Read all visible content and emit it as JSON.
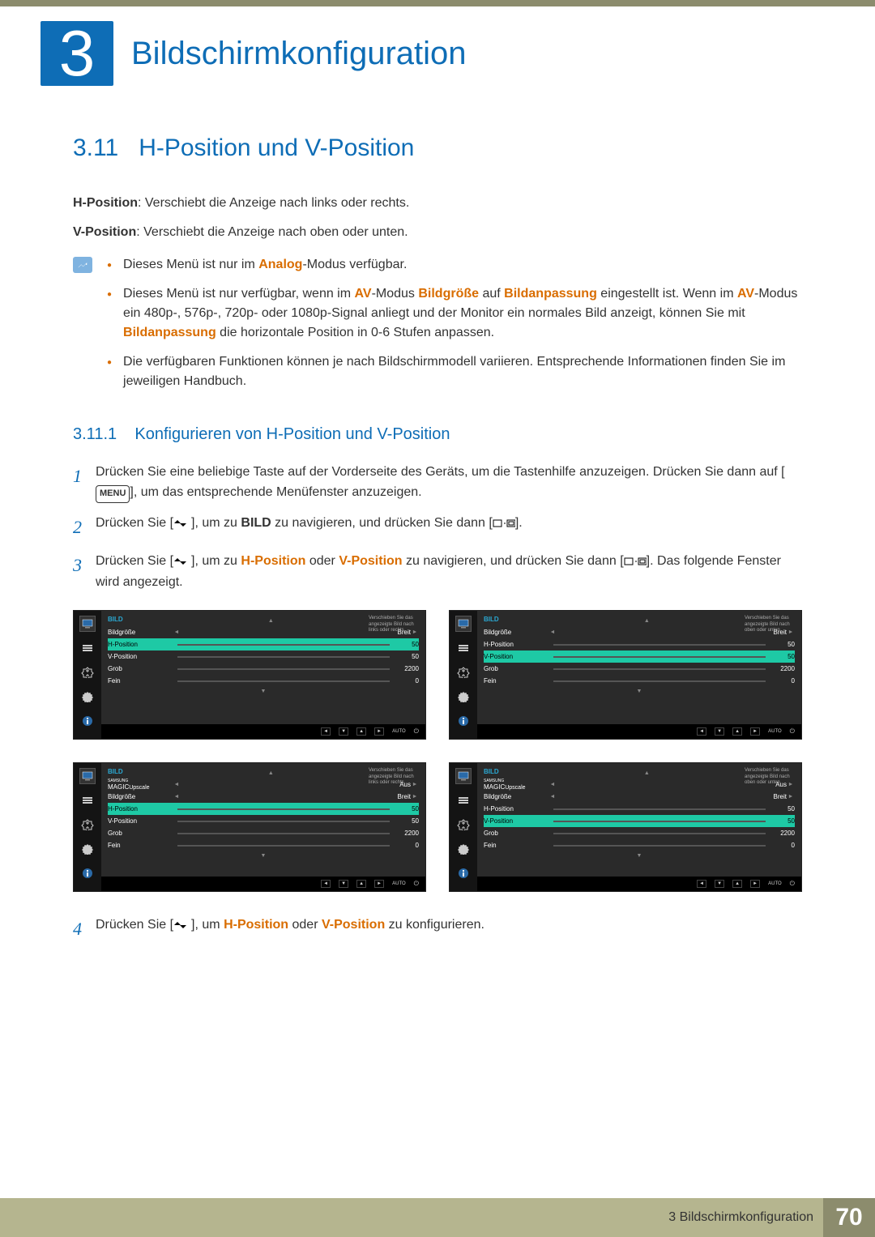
{
  "chapter": {
    "number": "3",
    "title": "Bildschirmkonfiguration"
  },
  "section": {
    "number": "3.11",
    "title": "H-Position und V-Position"
  },
  "intro": {
    "hpos_label": "H-Position",
    "hpos_text": ": Verschiebt die Anzeige nach links oder rechts.",
    "vpos_label": "V-Position",
    "vpos_text": ": Verschiebt die Anzeige nach oben oder unten."
  },
  "bullets": {
    "b1_pre": "Dieses Menü ist nur im ",
    "b1_kw": "Analog",
    "b1_suf": "-Modus verfügbar.",
    "b2_p1": "Dieses Menü ist nur verfügbar, wenn im ",
    "b2_av": "AV",
    "b2_p2": "-Modus ",
    "b2_bg": "Bildgröße",
    "b2_p3": " auf ",
    "b2_ba": "Bildanpassung",
    "b2_p4": " eingestellt ist. Wenn im ",
    "b2_p5": "-Modus ein 480p-, 576p-, 720p- oder 1080p-Signal anliegt und der Monitor ein normales Bild anzeigt, können Sie mit ",
    "b2_p6": " die horizontale Position in 0-6 Stufen anpassen.",
    "b3": "Die verfügbaren Funktionen können je nach Bildschirmmodell variieren. Entsprechende Informationen finden Sie im jeweiligen Handbuch."
  },
  "subsection": {
    "number": "3.11.1",
    "title": "Konfigurieren von H-Position und V-Position"
  },
  "steps": {
    "s1_a": "Drücken Sie eine beliebige Taste auf der Vorderseite des Geräts, um die Tastenhilfe anzuzeigen. Drücken Sie dann auf [",
    "s1_menu": "MENU",
    "s1_b": "], um das entsprechende Menüfenster anzuzeigen.",
    "s2_a": "Drücken Sie [",
    "s2_b": "], um zu ",
    "s2_bild": "BILD",
    "s2_c": " zu navigieren, und drücken Sie dann [",
    "s2_d": "].",
    "s3_a": "Drücken Sie [",
    "s3_b": "], um zu ",
    "s3_h": "H-Position",
    "s3_or": " oder ",
    "s3_v": "V-Position",
    "s3_c": " zu navigieren, und drücken Sie dann [",
    "s3_d": "]. Das folgende Fenster wird angezeigt.",
    "s4_a": "Drücken Sie [",
    "s4_b": "], um ",
    "s4_c": " zu konfigurieren."
  },
  "osd": {
    "title": "BILD",
    "help_lr": "Verschieben Sie das angezeigte Bild nach links oder rechts.",
    "help_ud": "Verschieben Sie das angezeigte Bild nach oben oder unten.",
    "auto": "AUTO",
    "magic": "MAGIC",
    "upscale": "Upscale",
    "samsung": "SAMSUNG",
    "panelA": {
      "highlight": 1,
      "rows": [
        {
          "label": "Bildgröße",
          "val": "Breit",
          "bar": null
        },
        {
          "label": "H-Position",
          "val": "50",
          "bar": 50
        },
        {
          "label": "V-Position",
          "val": "50",
          "bar": 50
        },
        {
          "label": "Grob",
          "val": "2200",
          "bar": 50
        },
        {
          "label": "Fein",
          "val": "0",
          "bar": 0
        }
      ]
    },
    "panelB": {
      "highlight": 2,
      "rows": [
        {
          "label": "Bildgröße",
          "val": "Breit",
          "bar": null
        },
        {
          "label": "H-Position",
          "val": "50",
          "bar": 50
        },
        {
          "label": "V-Position",
          "val": "50",
          "bar": 50
        },
        {
          "label": "Grob",
          "val": "2200",
          "bar": 50
        },
        {
          "label": "Fein",
          "val": "0",
          "bar": 0
        }
      ]
    },
    "panelC": {
      "highlight": 2,
      "rows": [
        {
          "label": "MAGICUpscale",
          "val": "Aus",
          "bar": null,
          "magic": true
        },
        {
          "label": "Bildgröße",
          "val": "Breit",
          "bar": null
        },
        {
          "label": "H-Position",
          "val": "50",
          "bar": 50
        },
        {
          "label": "V-Position",
          "val": "50",
          "bar": 50
        },
        {
          "label": "Grob",
          "val": "2200",
          "bar": 50
        },
        {
          "label": "Fein",
          "val": "0",
          "bar": 0
        }
      ]
    },
    "panelD": {
      "highlight": 3,
      "rows": [
        {
          "label": "MAGICUpscale",
          "val": "Aus",
          "bar": null,
          "magic": true
        },
        {
          "label": "Bildgröße",
          "val": "Breit",
          "bar": null
        },
        {
          "label": "H-Position",
          "val": "50",
          "bar": 50
        },
        {
          "label": "V-Position",
          "val": "50",
          "bar": 50
        },
        {
          "label": "Grob",
          "val": "2200",
          "bar": 50
        },
        {
          "label": "Fein",
          "val": "0",
          "bar": 0
        }
      ]
    }
  },
  "footer": {
    "chapter_ref": "3 Bildschirmkonfiguration",
    "page": "70"
  }
}
